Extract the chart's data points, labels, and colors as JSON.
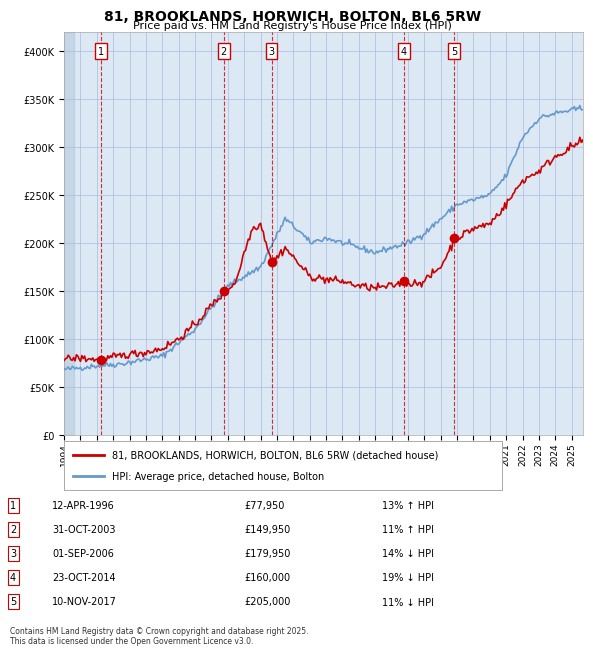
{
  "title": "81, BROOKLANDS, HORWICH, BOLTON, BL6 5RW",
  "subtitle": "Price paid vs. HM Land Registry's House Price Index (HPI)",
  "background_color": "#dce9f5",
  "plot_bg_color": "#dce9f5",
  "hatch_color": "#b0c4d8",
  "ylim": [
    0,
    420000
  ],
  "yticks": [
    0,
    50000,
    100000,
    150000,
    200000,
    250000,
    300000,
    350000,
    400000
  ],
  "ylabel_format": "£{0}K",
  "xlabel_start": 1994,
  "xlabel_end": 2026,
  "sale_dates": [
    "1996-04-12",
    "2003-10-31",
    "2006-09-01",
    "2014-10-23",
    "2017-11-10"
  ],
  "sale_prices": [
    77950,
    149950,
    179950,
    160000,
    205000
  ],
  "sale_labels": [
    "1",
    "2",
    "3",
    "4",
    "5"
  ],
  "vline_color": "#cc0000",
  "vline_style": "--",
  "sale_dot_color": "#cc0000",
  "red_line_color": "#cc0000",
  "blue_line_color": "#6699cc",
  "legend_box_color": "#ffffff",
  "legend_border_color": "#aaaaaa",
  "table_rows": [
    {
      "num": "1",
      "date": "12-APR-1996",
      "price": "£77,950",
      "hpi": "13% ↑ HPI"
    },
    {
      "num": "2",
      "date": "31-OCT-2003",
      "price": "£149,950",
      "hpi": "11% ↑ HPI"
    },
    {
      "num": "3",
      "date": "01-SEP-2006",
      "price": "£179,950",
      "hpi": "14% ↓ HPI"
    },
    {
      "num": "4",
      "date": "23-OCT-2014",
      "price": "£160,000",
      "hpi": "19% ↓ HPI"
    },
    {
      "num": "5",
      "date": "10-NOV-2017",
      "price": "£205,000",
      "hpi": "11% ↓ HPI"
    }
  ],
  "footer": "Contains HM Land Registry data © Crown copyright and database right 2025.\nThis data is licensed under the Open Government Licence v3.0.",
  "num_box_color": "#ffffff",
  "num_box_border": "#cc0000"
}
